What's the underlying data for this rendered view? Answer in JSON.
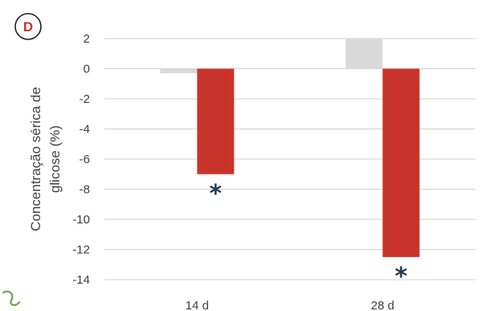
{
  "panel_label": "D",
  "colors": {
    "control": "#d9d9d9",
    "treatment": "#c8342a",
    "grid": "#d0d0d0",
    "marker": "#1f3b57",
    "badge": "#c8342a"
  },
  "chart_data": {
    "type": "bar",
    "title": "",
    "xlabel": "",
    "ylabel_lines": [
      "Concentração sérica de",
      "glicose (%)"
    ],
    "categories": [
      "14 d",
      "28 d"
    ],
    "ylim": [
      -14,
      2
    ],
    "yticks": [
      2,
      0,
      -2,
      -4,
      -6,
      -8,
      -10,
      -12,
      -14
    ],
    "grid": true,
    "series": [
      {
        "values": [
          -0.3,
          2.0
        ],
        "color": "#d9d9d9"
      },
      {
        "values": [
          -7.0,
          -12.5
        ],
        "color": "#c8342a"
      }
    ],
    "annotations": [
      {
        "category": "14 d",
        "series": 1,
        "text": "*"
      },
      {
        "category": "28 d",
        "series": 1,
        "text": "*"
      }
    ]
  }
}
